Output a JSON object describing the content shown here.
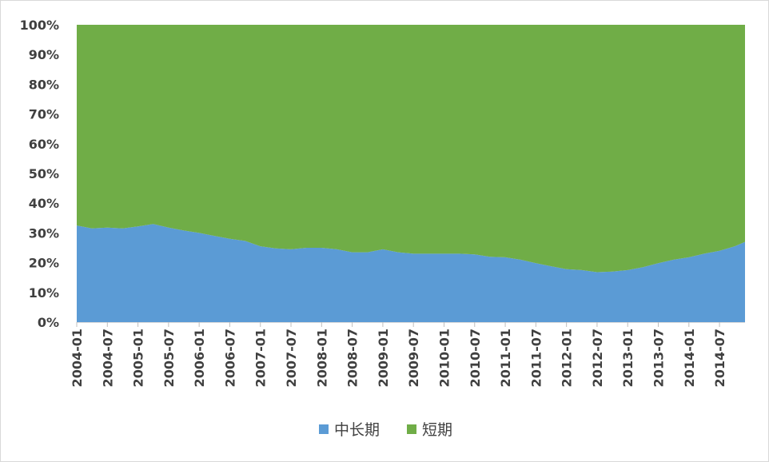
{
  "chart_data": {
    "type": "area",
    "stacked": "percent",
    "x": [
      "2004-01",
      "2004-04",
      "2004-07",
      "2004-10",
      "2005-01",
      "2005-04",
      "2005-07",
      "2005-10",
      "2006-01",
      "2006-04",
      "2006-07",
      "2006-10",
      "2007-01",
      "2007-04",
      "2007-07",
      "2007-10",
      "2008-01",
      "2008-04",
      "2008-07",
      "2008-10",
      "2009-01",
      "2009-04",
      "2009-07",
      "2009-10",
      "2010-01",
      "2010-04",
      "2010-07",
      "2010-10",
      "2011-01",
      "2011-04",
      "2011-07",
      "2011-10",
      "2012-01",
      "2012-04",
      "2012-07",
      "2012-10",
      "2013-01",
      "2013-04",
      "2013-07",
      "2013-10",
      "2014-01",
      "2014-04",
      "2014-07",
      "2014-10",
      "2014-12"
    ],
    "x_tick_labels": [
      "2004-01",
      "2004-07",
      "2005-01",
      "2005-07",
      "2006-01",
      "2006-07",
      "2007-01",
      "2007-07",
      "2008-01",
      "2008-07",
      "2009-01",
      "2009-07",
      "2010-01",
      "2010-07",
      "2011-01",
      "2011-07",
      "2012-01",
      "2012-07",
      "2013-01",
      "2013-07",
      "2014-01",
      "2014-07"
    ],
    "series": [
      {
        "name": "中长期",
        "color": "#5b9bd5",
        "values": [
          32.5,
          31.5,
          31.8,
          31.5,
          32.2,
          33.0,
          31.8,
          30.8,
          30.0,
          29.0,
          28.0,
          27.3,
          25.5,
          24.8,
          24.5,
          25.0,
          25.0,
          24.5,
          23.5,
          23.5,
          24.5,
          23.5,
          23.0,
          23.0,
          23.0,
          23.0,
          22.8,
          22.0,
          21.8,
          21.0,
          19.8,
          18.8,
          17.8,
          17.5,
          16.8,
          17.0,
          17.5,
          18.5,
          19.8,
          21.0,
          21.8,
          23.0,
          24.0,
          25.5,
          27.0
        ]
      },
      {
        "name": "短期",
        "color": "#70ad47",
        "values": [
          67.5,
          68.5,
          68.2,
          68.5,
          67.8,
          67.0,
          68.2,
          69.2,
          70.0,
          71.0,
          72.0,
          72.7,
          74.5,
          75.2,
          75.5,
          75.0,
          75.0,
          75.5,
          76.5,
          76.5,
          75.5,
          76.5,
          77.0,
          77.0,
          77.0,
          77.0,
          77.2,
          78.0,
          78.2,
          79.0,
          80.2,
          81.2,
          82.2,
          82.5,
          83.2,
          83.0,
          82.5,
          81.5,
          80.2,
          79.0,
          78.2,
          77.0,
          76.0,
          74.5,
          73.0
        ]
      }
    ],
    "y_ticks": [
      "0%",
      "10%",
      "20%",
      "30%",
      "40%",
      "50%",
      "60%",
      "70%",
      "80%",
      "90%",
      "100%"
    ],
    "ylim": [
      0,
      100
    ],
    "legend_position": "bottom",
    "grid": false,
    "title": "",
    "xlabel": "",
    "ylabel": ""
  }
}
